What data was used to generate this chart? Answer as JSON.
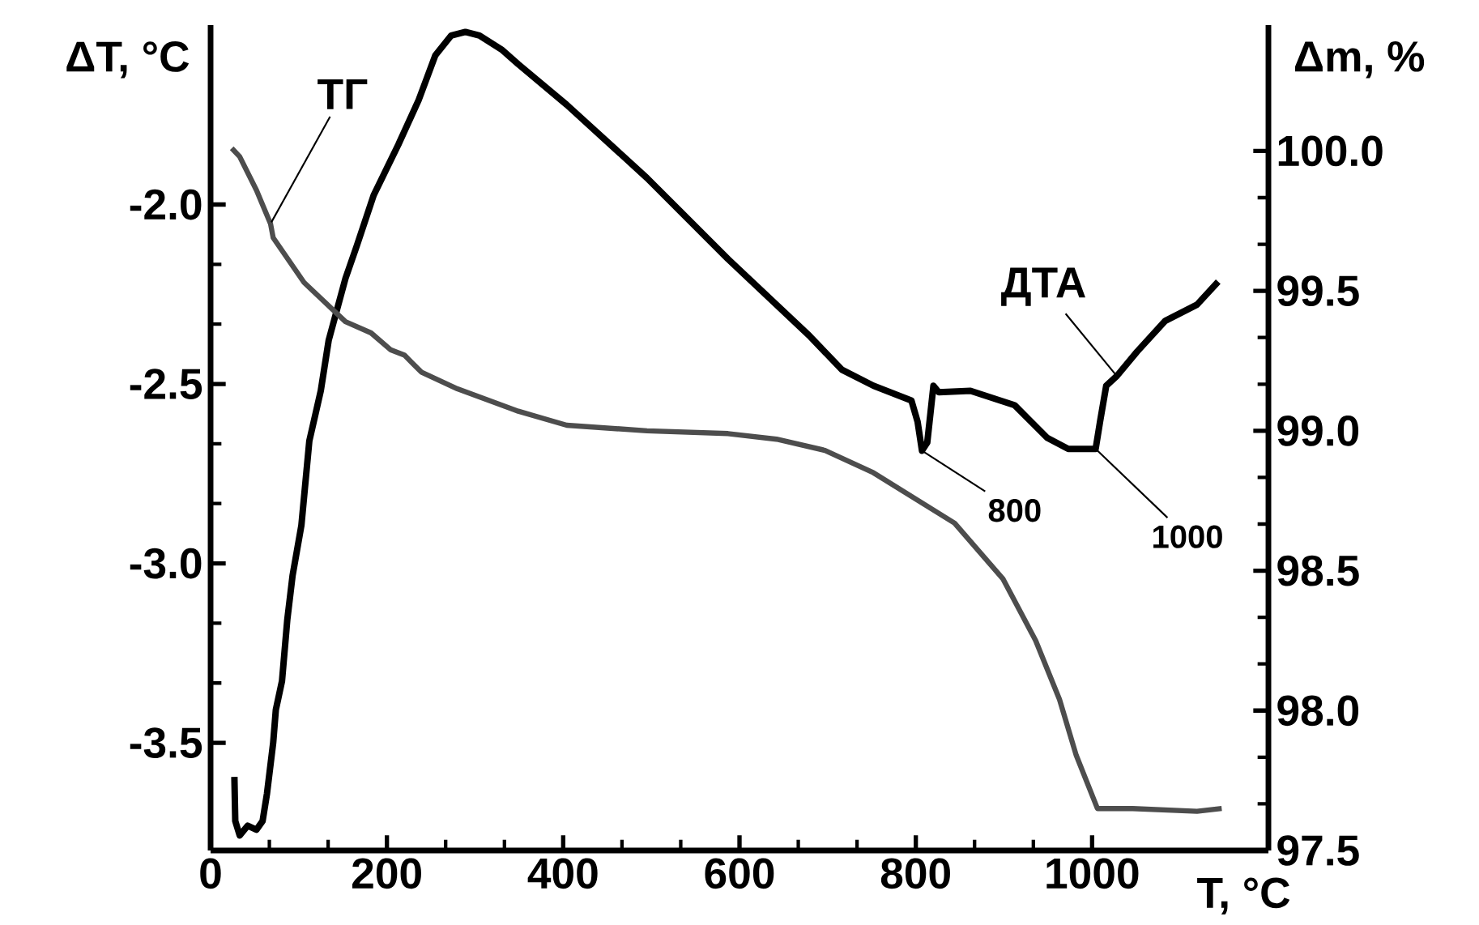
{
  "chart_data": {
    "type": "line",
    "xlabel": "T, °C",
    "ylabel": "ΔT, °C",
    "y2label": "Δm, %",
    "xlim": [
      0,
      1200
    ],
    "xticks": [
      0,
      200,
      400,
      600,
      800,
      1000
    ],
    "ylim": [
      -3.8,
      -1.5
    ],
    "yticks": [
      {
        "value": -3.5,
        "label": "-3.5"
      },
      {
        "value": -3.0,
        "label": "-3.0"
      },
      {
        "value": -2.5,
        "label": "-2.5"
      },
      {
        "value": -2.0,
        "label": "-2.0"
      }
    ],
    "y2lim": [
      97.5,
      100.45
    ],
    "y2ticks": [
      {
        "value": 97.5,
        "label": "97.5"
      },
      {
        "value": 98.0,
        "label": "98.0"
      },
      {
        "value": 98.5,
        "label": "98.5"
      },
      {
        "value": 99.0,
        "label": "99.0"
      },
      {
        "value": 99.5,
        "label": "99.5"
      },
      {
        "value": 100.0,
        "label": "100.0"
      }
    ],
    "marker": "none",
    "line_style": "solid",
    "series": [
      {
        "name": "ДТА",
        "color": "#000000",
        "x": [
          27,
          28,
          33,
          42,
          52,
          59,
          64,
          71,
          74,
          81,
          87,
          93,
          103,
          112,
          125,
          134,
          153,
          166,
          185,
          213,
          236,
          255,
          273,
          289,
          305,
          330,
          349,
          404,
          495,
          587,
          679,
          716,
          752,
          795,
          802,
          807,
          813,
          820,
          826,
          862,
          912,
          949,
          973,
          1004,
          1009,
          1016,
          1028,
          1051,
          1083,
          1119,
          1143
        ],
        "values": [
          -3.595,
          -3.718,
          -3.758,
          -3.731,
          -3.742,
          -3.718,
          -3.641,
          -3.5,
          -3.408,
          -3.328,
          -3.157,
          -3.034,
          -2.894,
          -2.659,
          -2.519,
          -2.378,
          -2.206,
          -2.114,
          -1.974,
          -1.833,
          -1.709,
          -1.584,
          -1.529,
          -1.519,
          -1.529,
          -1.568,
          -1.609,
          -1.722,
          -1.926,
          -2.152,
          -2.365,
          -2.46,
          -2.505,
          -2.546,
          -2.605,
          -2.686,
          -2.663,
          -2.505,
          -2.523,
          -2.519,
          -2.559,
          -2.65,
          -2.681,
          -2.681,
          -2.605,
          -2.505,
          -2.478,
          -2.41,
          -2.324,
          -2.279,
          -2.215
        ]
      },
      {
        "name": "ТГ",
        "color": "#4d4d4d",
        "axis": "y2",
        "x": [
          24,
          33,
          52,
          68,
          71,
          106,
          153,
          182,
          204,
          220,
          239,
          280,
          349,
          404,
          495,
          587,
          642,
          697,
          752,
          844,
          899,
          936,
          963,
          982,
          1006,
          1046,
          1119,
          1147
        ],
        "values": [
          100.01,
          99.98,
          99.86,
          99.74,
          99.69,
          99.53,
          99.39,
          99.35,
          99.29,
          99.27,
          99.21,
          99.15,
          99.07,
          99.02,
          99.0,
          98.99,
          98.97,
          98.93,
          98.85,
          98.67,
          98.47,
          98.25,
          98.04,
          97.84,
          97.65,
          97.65,
          97.64,
          97.65
        ]
      }
    ],
    "annotations": [
      {
        "text": "800",
        "x": 807,
        "y": -2.686
      },
      {
        "text": "1000",
        "x": 1004,
        "y": -2.681
      }
    ]
  }
}
